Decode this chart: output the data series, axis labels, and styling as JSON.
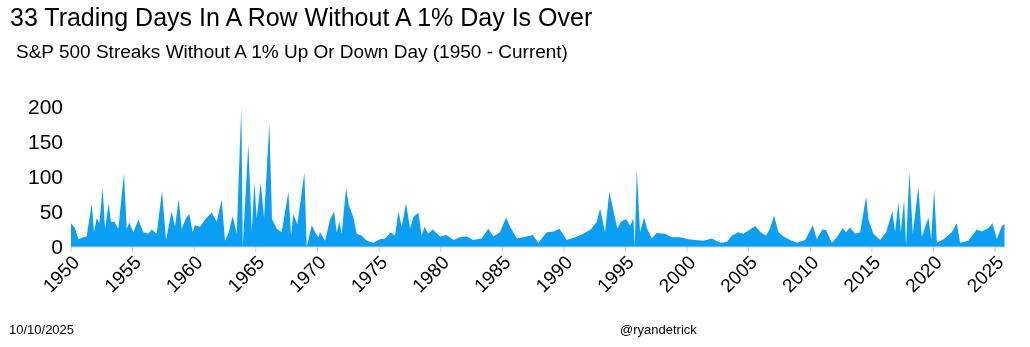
{
  "chart_data": {
    "type": "area",
    "title": "33 Trading Days In A Row Without A 1% Day Is Over",
    "subtitle": "S&P 500 Streaks Without A 1% Up Or Down Day (1950 - Current)",
    "annotations": [
      "10/10/2025",
      "@ryandetrick"
    ],
    "color": "#0a9ef5",
    "x": [
      1950.0,
      1950.32,
      1950.6,
      1951.0,
      1951.27,
      1951.68,
      1951.87,
      1952.08,
      1952.3,
      1952.57,
      1952.76,
      1953.06,
      1953.25,
      1953.52,
      1953.84,
      1954.3,
      1954.52,
      1954.73,
      1955.06,
      1955.46,
      1955.87,
      1956.28,
      1956.55,
      1956.95,
      1957.39,
      1957.71,
      1958.17,
      1958.44,
      1958.74,
      1958.98,
      1959.33,
      1959.6,
      1959.88,
      1960.06,
      1960.47,
      1960.96,
      1961.42,
      1961.83,
      1962.23,
      1962.5,
      1962.77,
      1963.12,
      1963.45,
      1963.82,
      1963.94,
      1964.39,
      1964.67,
      1964.88,
      1965.07,
      1965.4,
      1965.67,
      1966.1,
      1966.31,
      1966.7,
      1967.1,
      1967.64,
      1967.86,
      1968.04,
      1968.37,
      1968.94,
      1969.13,
      1969.54,
      1969.81,
      1970.07,
      1970.21,
      1970.62,
      1971.02,
      1971.35,
      1971.56,
      1971.78,
      1971.97,
      1972.32,
      1972.56,
      1972.92,
      1973.19,
      1973.6,
      1974.0,
      1974.54,
      1975.08,
      1975.49,
      1975.95,
      1976.3,
      1976.57,
      1976.84,
      1977.19,
      1977.52,
      1977.78,
      1978.19,
      1978.46,
      1978.68,
      1979.0,
      1979.36,
      1979.95,
      1980.49,
      1981.03,
      1981.57,
      1982.12,
      1982.65,
      1983.33,
      1983.87,
      1984.28,
      1984.82,
      1985.31,
      1985.63,
      1986.18,
      1986.71,
      1987.48,
      1987.93,
      1988.61,
      1989.15,
      1989.64,
      1990.23,
      1990.91,
      1991.58,
      1992.18,
      1992.67,
      1992.94,
      1993.34,
      1993.69,
      1994.02,
      1994.34,
      1994.62,
      1995.05,
      1995.37,
      1995.64,
      1995.75,
      1995.92,
      1996.18,
      1996.51,
      1996.78,
      1997.13,
      1997.54,
      1998.21,
      1998.76,
      1999.43,
      2000.1,
      2000.65,
      2001.32,
      2002.0,
      2002.68,
      2003.22,
      2003.63,
      2004.16,
      2004.57,
      2005.11,
      2005.52,
      2005.98,
      2006.41,
      2006.74,
      2007.06,
      2007.41,
      2007.82,
      2008.36,
      2008.9,
      2009.58,
      2010.2,
      2010.53,
      2010.98,
      2011.28,
      2011.74,
      2012.15,
      2012.64,
      2012.88,
      2013.23,
      2013.64,
      2014.04,
      2014.53,
      2014.72,
      2015.12,
      2015.66,
      2016.15,
      2016.66,
      2016.88,
      2017.15,
      2017.34,
      2017.61,
      2017.77,
      2018.04,
      2018.32,
      2018.77,
      2019.05,
      2019.32,
      2019.59,
      2019.81,
      2020.05,
      2020.27,
      2020.81,
      2021.48,
      2021.89,
      2022.16,
      2022.83,
      2023.51,
      2023.92,
      2024.46,
      2024.78,
      2025.14,
      2025.54,
      2025.76
    ],
    "values": [
      34,
      27,
      11,
      14,
      15,
      62,
      21,
      41,
      34,
      84,
      26,
      62,
      36,
      36,
      26,
      105,
      26,
      35,
      21,
      39,
      21,
      19,
      25,
      19,
      80,
      10,
      51,
      29,
      69,
      26,
      41,
      47,
      21,
      31,
      29,
      41,
      49,
      36,
      68,
      9,
      19,
      44,
      19,
      200,
      0,
      147,
      21,
      93,
      41,
      92,
      41,
      177,
      40,
      26,
      21,
      79,
      16,
      47,
      32,
      106,
      0,
      31,
      21,
      14,
      21,
      9,
      39,
      51,
      21,
      36,
      19,
      84,
      59,
      42,
      19,
      16,
      9,
      6,
      11,
      12,
      21,
      16,
      51,
      29,
      63,
      26,
      43,
      49,
      16,
      29,
      19,
      25,
      15,
      17,
      10,
      14,
      15,
      10,
      12,
      26,
      15,
      21,
      42,
      29,
      12,
      14,
      17,
      6,
      21,
      22,
      26,
      10,
      14,
      19,
      25,
      36,
      55,
      21,
      79,
      52,
      26,
      36,
      40,
      30,
      41,
      0,
      110,
      21,
      42,
      25,
      12,
      20,
      19,
      14,
      14,
      11,
      10,
      9,
      12,
      6,
      7,
      16,
      21,
      19,
      25,
      30,
      21,
      16,
      27,
      45,
      21,
      15,
      10,
      6,
      10,
      31,
      11,
      25,
      24,
      6,
      14,
      27,
      21,
      28,
      19,
      21,
      72,
      39,
      19,
      10,
      21,
      51,
      21,
      64,
      21,
      67,
      1,
      108,
      19,
      86,
      14,
      29,
      42,
      11,
      82,
      6,
      11,
      21,
      34,
      6,
      9,
      25,
      22,
      27,
      34,
      11,
      30,
      33
    ],
    "xlim": [
      1950,
      2025.8
    ],
    "xticks": [
      1950,
      1955,
      1960,
      1965,
      1970,
      1975,
      1980,
      1985,
      1990,
      1995,
      2000,
      2005,
      2010,
      2015,
      2020,
      2025
    ],
    "ylim": [
      0,
      200
    ],
    "yticks": [
      0,
      50,
      100,
      150,
      200
    ]
  }
}
